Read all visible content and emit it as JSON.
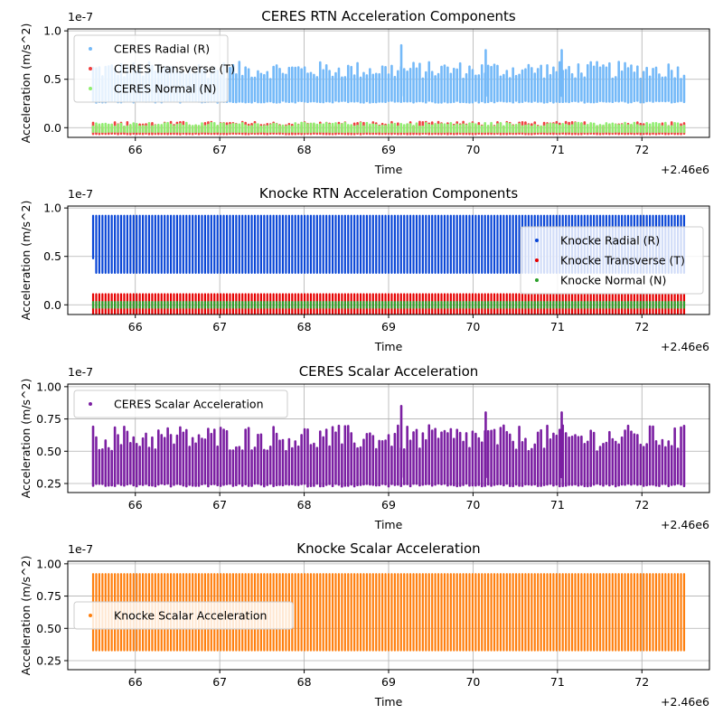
{
  "chart_data": [
    {
      "type": "scatter",
      "title": "CERES RTN Acceleration Components",
      "xlabel": "Time",
      "ylabel": "Acceleration (m/s^2)",
      "x_offset_label": "+2.46e6",
      "y_scale_label": "1e-7",
      "xlim": [
        65.2,
        72.8
      ],
      "ylim": [
        -0.1,
        1.02
      ],
      "xticks": [
        "66",
        "67",
        "68",
        "69",
        "70",
        "71",
        "72"
      ],
      "yticks": [
        "0.0",
        "0.5",
        "1.0"
      ],
      "grid": true,
      "legend_position": "upper-left",
      "series": [
        {
          "name": "CERES Radial (R)",
          "color": "#74b9f8",
          "x_range": [
            65.5,
            72.5
          ],
          "base": 0.28,
          "peak": 0.68,
          "style": "noisy"
        },
        {
          "name": "CERES Transverse (T)",
          "color": "#f04040",
          "x_range": [
            65.5,
            72.5
          ],
          "base": -0.06,
          "peak": 0.06,
          "style": "noisy"
        },
        {
          "name": "CERES Normal (N)",
          "color": "#90ee70",
          "x_range": [
            65.5,
            72.5
          ],
          "base": -0.04,
          "peak": 0.05,
          "style": "noisy"
        }
      ],
      "annotations": [
        {
          "x": 69.15,
          "value": 0.85,
          "series": 0
        },
        {
          "x": 70.15,
          "value": 0.8,
          "series": 0
        },
        {
          "x": 71.05,
          "value": 0.8,
          "series": 0
        }
      ]
    },
    {
      "type": "scatter",
      "title": "Knocke RTN Acceleration Components",
      "xlabel": "Time",
      "ylabel": "Acceleration (m/s^2)",
      "x_offset_label": "+2.46e6",
      "y_scale_label": "1e-7",
      "xlim": [
        65.2,
        72.8
      ],
      "ylim": [
        -0.1,
        1.02
      ],
      "xticks": [
        "66",
        "67",
        "68",
        "69",
        "70",
        "71",
        "72"
      ],
      "yticks": [
        "0.0",
        "0.5",
        "1.0"
      ],
      "grid": true,
      "legend_position": "center-right",
      "series": [
        {
          "name": "Knocke Radial (R)",
          "color": "#0a46d6",
          "x_range": [
            65.5,
            72.5
          ],
          "base": 0.33,
          "peak": 0.92,
          "style": "periodic"
        },
        {
          "name": "Knocke Transverse (T)",
          "color": "#e60000",
          "x_range": [
            65.5,
            72.5
          ],
          "base": -0.1,
          "peak": 0.11,
          "style": "periodic"
        },
        {
          "name": "Knocke Normal (N)",
          "color": "#2ca02c",
          "x_range": [
            65.5,
            72.5
          ],
          "base": -0.03,
          "peak": 0.03,
          "style": "periodic"
        }
      ]
    },
    {
      "type": "scatter",
      "title": "CERES Scalar Acceleration",
      "xlabel": "Time",
      "ylabel": "Acceleration (m/s^2)",
      "x_offset_label": "+2.46e6",
      "y_scale_label": "1e-7",
      "xlim": [
        65.2,
        72.8
      ],
      "ylim": [
        0.18,
        1.02
      ],
      "xticks": [
        "66",
        "67",
        "68",
        "69",
        "70",
        "71",
        "72"
      ],
      "yticks": [
        "0.25",
        "0.50",
        "0.75",
        "1.00"
      ],
      "grid": true,
      "legend_position": "upper-left",
      "series": [
        {
          "name": "CERES Scalar Acceleration",
          "color": "#7b1fa2",
          "x_range": [
            65.5,
            72.5
          ],
          "base": 0.25,
          "peak": 0.7,
          "style": "noisy"
        }
      ],
      "annotations": [
        {
          "x": 69.15,
          "value": 0.85,
          "series": 0
        },
        {
          "x": 70.15,
          "value": 0.8,
          "series": 0
        },
        {
          "x": 71.05,
          "value": 0.8,
          "series": 0
        }
      ]
    },
    {
      "type": "scatter",
      "title": "Knocke Scalar Acceleration",
      "xlabel": "Time",
      "ylabel": "Acceleration (m/s^2)",
      "x_offset_label": "+2.46e6",
      "y_scale_label": "1e-7",
      "xlim": [
        65.2,
        72.8
      ],
      "ylim": [
        0.18,
        1.02
      ],
      "xticks": [
        "66",
        "67",
        "68",
        "69",
        "70",
        "71",
        "72"
      ],
      "yticks": [
        "0.25",
        "0.50",
        "0.75",
        "1.00"
      ],
      "grid": true,
      "legend_position": "center-left",
      "series": [
        {
          "name": "Knocke Scalar Acceleration",
          "color": "#ff7f0e",
          "x_range": [
            65.5,
            72.5
          ],
          "base": 0.33,
          "peak": 0.92,
          "style": "periodic"
        }
      ]
    }
  ]
}
